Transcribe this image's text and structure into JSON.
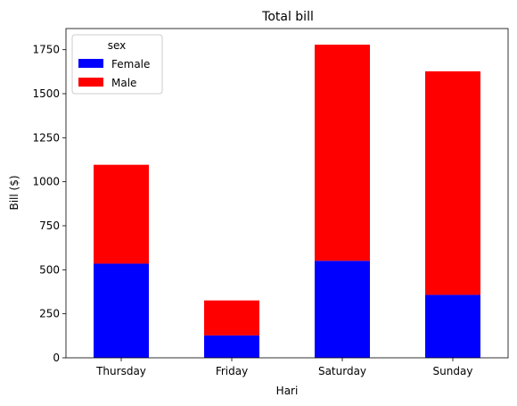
{
  "chart_data": {
    "type": "bar",
    "stacked": true,
    "title": "Total bill",
    "xlabel": "Hari",
    "ylabel": "Bill ($)",
    "categories": [
      "Thursday",
      "Friday",
      "Saturday",
      "Sunday"
    ],
    "series": [
      {
        "name": "Female",
        "color": "#0000ff",
        "values": [
          534.89,
          127.31,
          551.05,
          357.7
        ]
      },
      {
        "name": "Male",
        "color": "#ff0000",
        "values": [
          561.44,
          198.57,
          1227.35,
          1269.46
        ]
      }
    ],
    "ylim": [
      0,
      1870
    ],
    "yticks": [
      0,
      250,
      500,
      750,
      1000,
      1250,
      1500,
      1750
    ],
    "grid": false,
    "legend": {
      "title": "sex",
      "placement": "top-left"
    }
  }
}
